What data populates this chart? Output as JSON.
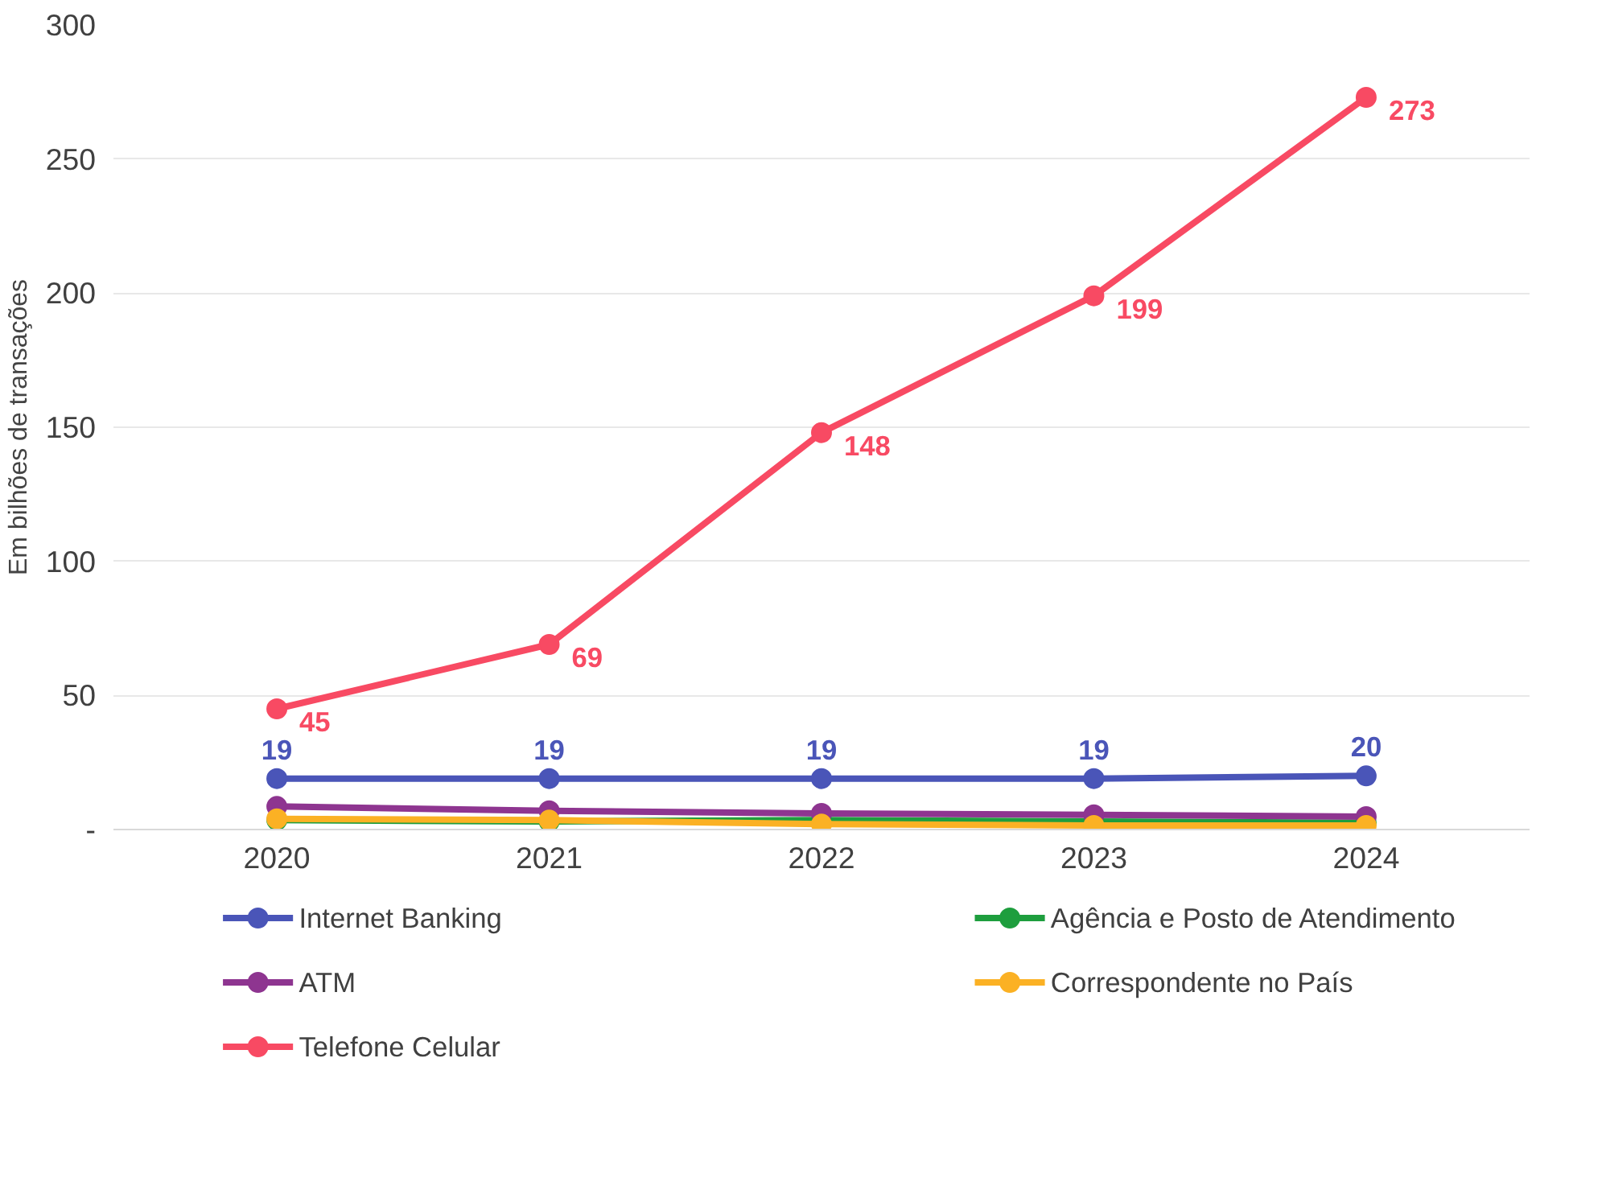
{
  "chart_data": {
    "type": "line",
    "ylabel": "Em bilhões de transações",
    "categories": [
      "2020",
      "2021",
      "2022",
      "2023",
      "2024"
    ],
    "ylim": [
      0,
      300
    ],
    "yticks": [
      {
        "value": 0,
        "label": "-"
      },
      50,
      100,
      150,
      200,
      250,
      300
    ],
    "grid": "y",
    "legend": "bottom",
    "marker": "circle",
    "line_style": "solid",
    "series": [
      {
        "name": "Internet Banking",
        "color": "#4a55b8",
        "values": [
          19,
          19,
          19,
          19,
          20
        ],
        "value_labels": [
          "19",
          "19",
          "19",
          "19",
          "20"
        ]
      },
      {
        "name": "Agência e Posto de Atendimento",
        "color": "#1e9e3e",
        "values": [
          3.5,
          3,
          3.5,
          3,
          2.5
        ]
      },
      {
        "name": "ATM",
        "color": "#8e3590",
        "values": [
          8.6,
          7,
          6,
          5.5,
          4.8
        ]
      },
      {
        "name": "Correspondente no País",
        "color": "#fbb124",
        "values": [
          4,
          3.5,
          2,
          1.5,
          1.5
        ]
      },
      {
        "name": "Telefone Celular",
        "color": "#f84a63",
        "values": [
          45,
          69,
          148,
          199,
          273
        ],
        "value_labels": [
          "45",
          "69",
          "148",
          "199",
          "273"
        ]
      }
    ]
  }
}
